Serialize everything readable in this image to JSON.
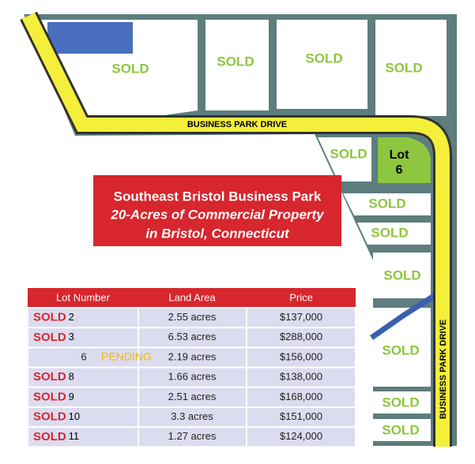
{
  "map": {
    "lots": [
      "SOLD",
      "SOLD",
      "SOLD",
      "SOLD",
      "SOLD",
      "SOLD",
      "SOLD",
      "SOLD",
      "SOLD",
      "SOLD",
      "SOLD"
    ],
    "lot6_label": [
      "Lot",
      "6"
    ],
    "road_labels": [
      "BUSINESS PARK DRIVE",
      "BUSINESS PARK DRIVE"
    ]
  },
  "banner": {
    "title": "Southeast Bristol Business Park",
    "subtitle_1": "20-Acres of Commercial Property",
    "subtitle_2": "in Bristol, Connecticut"
  },
  "table": {
    "header": [
      "Lot Number",
      "Land Area",
      "Price"
    ],
    "rows": [
      {
        "status": "SOLD",
        "lot": "2",
        "area": "2.55 acres",
        "price": "$137,000"
      },
      {
        "status": "SOLD",
        "lot": "3",
        "area": "6.53 acres",
        "price": "$288,000"
      },
      {
        "status": "PENDING",
        "lot": "6",
        "area": "2.19 acres",
        "price": "$156,000"
      },
      {
        "status": "SOLD",
        "lot": "8",
        "area": "1.66 acres",
        "price": "$138,000"
      },
      {
        "status": "SOLD",
        "lot": "9",
        "area": "2.51 acres",
        "price": "$168,000"
      },
      {
        "status": "SOLD",
        "lot": "10",
        "area": "3.3 acres",
        "price": "$151,000"
      },
      {
        "status": "SOLD",
        "lot": "11",
        "area": "1.27 acres",
        "price": "$124,000"
      }
    ]
  }
}
